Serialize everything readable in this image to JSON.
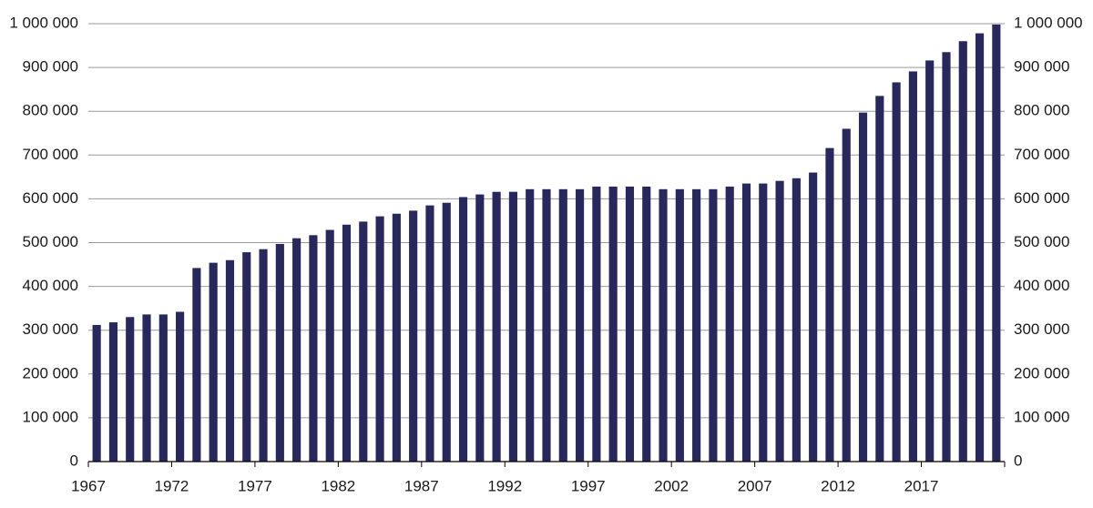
{
  "chart_data": {
    "type": "bar",
    "categories": [
      "1967",
      null,
      null,
      null,
      null,
      "1972",
      null,
      null,
      null,
      null,
      "1977",
      null,
      null,
      null,
      null,
      "1982",
      null,
      null,
      null,
      null,
      "1987",
      null,
      null,
      null,
      null,
      "1992",
      null,
      null,
      null,
      null,
      "1997",
      null,
      null,
      null,
      null,
      "2002",
      null,
      null,
      null,
      null,
      "2007",
      null,
      null,
      null,
      null,
      "2012",
      null,
      null,
      null,
      null,
      "2017",
      null,
      null,
      null,
      null
    ],
    "values": [
      312000,
      318000,
      330000,
      336000,
      336000,
      342000,
      442000,
      454000,
      460000,
      478000,
      485000,
      497000,
      510000,
      517000,
      529000,
      541000,
      548000,
      560000,
      566000,
      573000,
      585000,
      591000,
      604000,
      610000,
      616000,
      616000,
      622000,
      622000,
      622000,
      622000,
      628000,
      628000,
      628000,
      628000,
      622000,
      622000,
      622000,
      622000,
      628000,
      635000,
      635000,
      641000,
      647000,
      660000,
      716000,
      760000,
      797000,
      835000,
      866000,
      891000,
      916000,
      935000,
      960000,
      978000,
      998000
    ],
    "color": "#28285c",
    "ylim": [
      0,
      1000000
    ],
    "yticks": [
      0,
      {
        "value": 100000,
        "label": "100 000"
      },
      {
        "value": 200000,
        "label": "200 000"
      },
      {
        "value": 300000,
        "label": "300 000"
      },
      {
        "value": 400000,
        "label": "400 000"
      },
      {
        "value": 500000,
        "label": "500 000"
      },
      {
        "value": 600000,
        "label": "600 000"
      },
      {
        "value": 700000,
        "label": "700 000"
      },
      {
        "value": 800000,
        "label": "800 000"
      },
      {
        "value": 900000,
        "label": "900 000"
      },
      {
        "value": 1000000,
        "label": "1 000 000"
      }
    ],
    "y2lim": [
      0,
      1000000
    ],
    "y2ticks": [
      0,
      {
        "value": 100000,
        "label": "100 000"
      },
      {
        "value": 200000,
        "label": "200 000"
      },
      {
        "value": 300000,
        "label": "300 000"
      },
      {
        "value": 400000,
        "label": "400 000"
      },
      {
        "value": 500000,
        "label": "500 000"
      },
      {
        "value": 600000,
        "label": "600 000"
      },
      {
        "value": 700000,
        "label": "700 000"
      },
      {
        "value": 800000,
        "label": "800 000"
      },
      {
        "value": 900000,
        "label": "900 000"
      },
      {
        "value": 1000000,
        "label": "1 000 000"
      }
    ],
    "grid": true
  }
}
